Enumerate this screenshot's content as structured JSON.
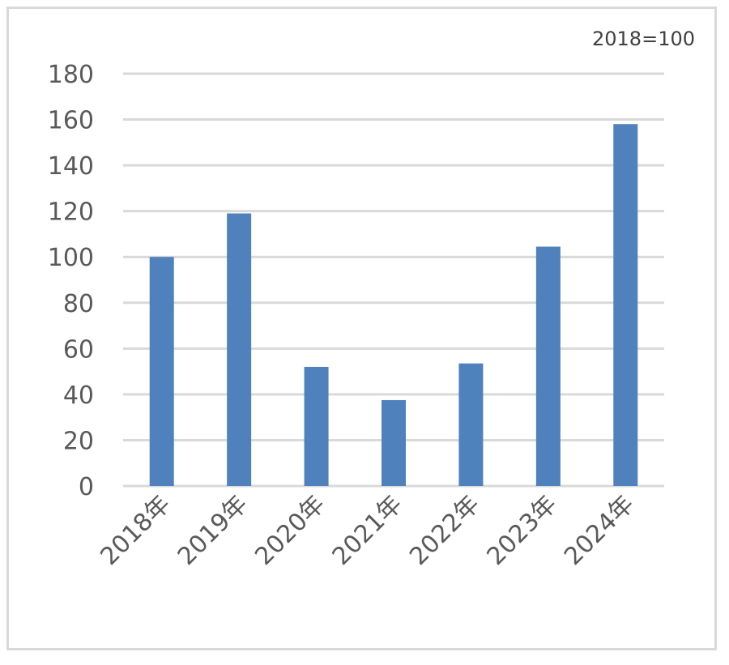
{
  "chart_data": {
    "type": "bar",
    "note": "2018=100",
    "categories": [
      "2018年",
      "2019年",
      "2020年",
      "2021年",
      "2022年",
      "2023年",
      "2024年"
    ],
    "values": [
      100,
      119,
      52,
      37.5,
      53.5,
      104.5,
      158
    ],
    "ylim": [
      0,
      180
    ],
    "yticks": [
      0,
      20,
      40,
      60,
      80,
      100,
      120,
      140,
      160,
      180
    ],
    "grid": true,
    "bar_color": "#4f81bd",
    "grid_color": "#d9d9d9",
    "text_color": "#595959"
  }
}
